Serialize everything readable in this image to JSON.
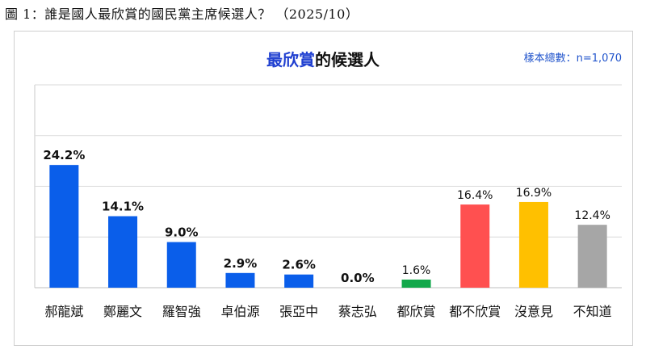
{
  "caption": "圖 1：誰是國人最欣賞的國民黨主席候選人？ （2025/10）",
  "sample_note": "樣本總數：n=1,070",
  "chart_data": {
    "type": "bar",
    "title_highlight": "最欣賞",
    "title_rest": "的候選人",
    "categories": [
      "郝龍斌",
      "鄭麗文",
      "羅智強",
      "卓伯源",
      "張亞中",
      "蔡志弘",
      "都欣賞",
      "都不欣賞",
      "沒意見",
      "不知道"
    ],
    "values": [
      24.2,
      14.1,
      9.0,
      2.9,
      2.6,
      0.0,
      1.6,
      16.4,
      16.9,
      12.4
    ],
    "value_labels": [
      "24.2%",
      "14.1%",
      "9.0%",
      "2.9%",
      "2.6%",
      "0.0%",
      "1.6%",
      "16.4%",
      "16.9%",
      "12.4%"
    ],
    "colors": [
      "#0a5eea",
      "#0a5eea",
      "#0a5eea",
      "#0a5eea",
      "#0a5eea",
      "#0a5eea",
      "#13a84b",
      "#ff5050",
      "#ffc000",
      "#a6a6a6"
    ],
    "bold_labels": [
      true,
      true,
      true,
      true,
      true,
      true,
      false,
      false,
      false,
      false
    ],
    "ylim": [
      0,
      40
    ],
    "grid": true,
    "xlabel": "",
    "ylabel": ""
  }
}
